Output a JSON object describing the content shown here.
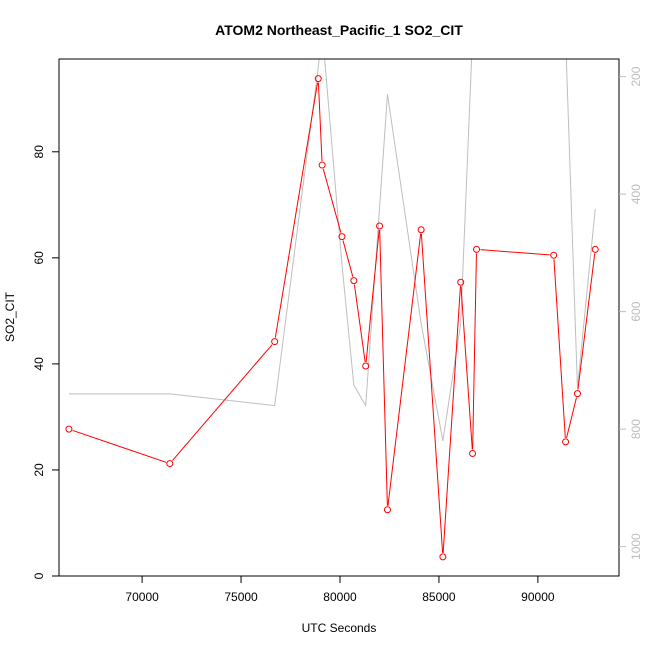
{
  "chart_data": {
    "type": "line",
    "title": "ATOM2 Northeast_Pacific_1 SO2_CIT",
    "xlabel": "UTC Seconds",
    "ylabel": "SO2_CIT",
    "xlim": [
      65800,
      94100
    ],
    "ylim": [
      0,
      97.5
    ],
    "x_ticks": [
      70000,
      75000,
      80000,
      85000,
      90000
    ],
    "y_ticks": [
      0,
      20,
      40,
      60,
      80
    ],
    "y2_ticks": [
      200,
      400,
      600,
      800,
      1000
    ],
    "y2lim": [
      1050,
      170
    ],
    "grid": false,
    "legend": "none",
    "colors": {
      "primary": "#ff0000",
      "secondary": "#bebebe"
    },
    "series": [
      {
        "axis": "left",
        "style": "line-points",
        "points": [
          [
            66300,
            27.7
          ],
          [
            71400,
            21.2
          ],
          [
            76700,
            44.2
          ],
          [
            78900,
            93.8
          ],
          [
            79100,
            77.5
          ],
          [
            80100,
            64.0
          ],
          [
            80700,
            55.7
          ],
          [
            81300,
            39.6
          ],
          [
            82000,
            66.0
          ],
          [
            82400,
            12.5
          ],
          [
            84100,
            65.3
          ],
          [
            85200,
            3.6
          ],
          [
            86100,
            55.4
          ],
          [
            86700,
            23.1
          ],
          [
            86900,
            61.6
          ],
          [
            90800,
            60.5
          ],
          [
            91400,
            25.3
          ],
          [
            92000,
            34.4
          ],
          [
            92900,
            61.6
          ]
        ]
      },
      {
        "axis": "right",
        "style": "line",
        "points": [
          [
            66300,
            740
          ],
          [
            71400,
            740
          ],
          [
            76700,
            760
          ],
          [
            78900,
            185
          ],
          [
            79100,
            120
          ],
          [
            80100,
            520
          ],
          [
            80700,
            725
          ],
          [
            81300,
            760
          ],
          [
            82400,
            230
          ],
          [
            84100,
            620
          ],
          [
            85200,
            820
          ],
          [
            86100,
            620
          ],
          [
            86700,
            130
          ],
          [
            86900,
            120
          ],
          [
            90800,
            120
          ],
          [
            91400,
            130
          ],
          [
            92000,
            730
          ],
          [
            92900,
            425
          ]
        ]
      }
    ]
  }
}
